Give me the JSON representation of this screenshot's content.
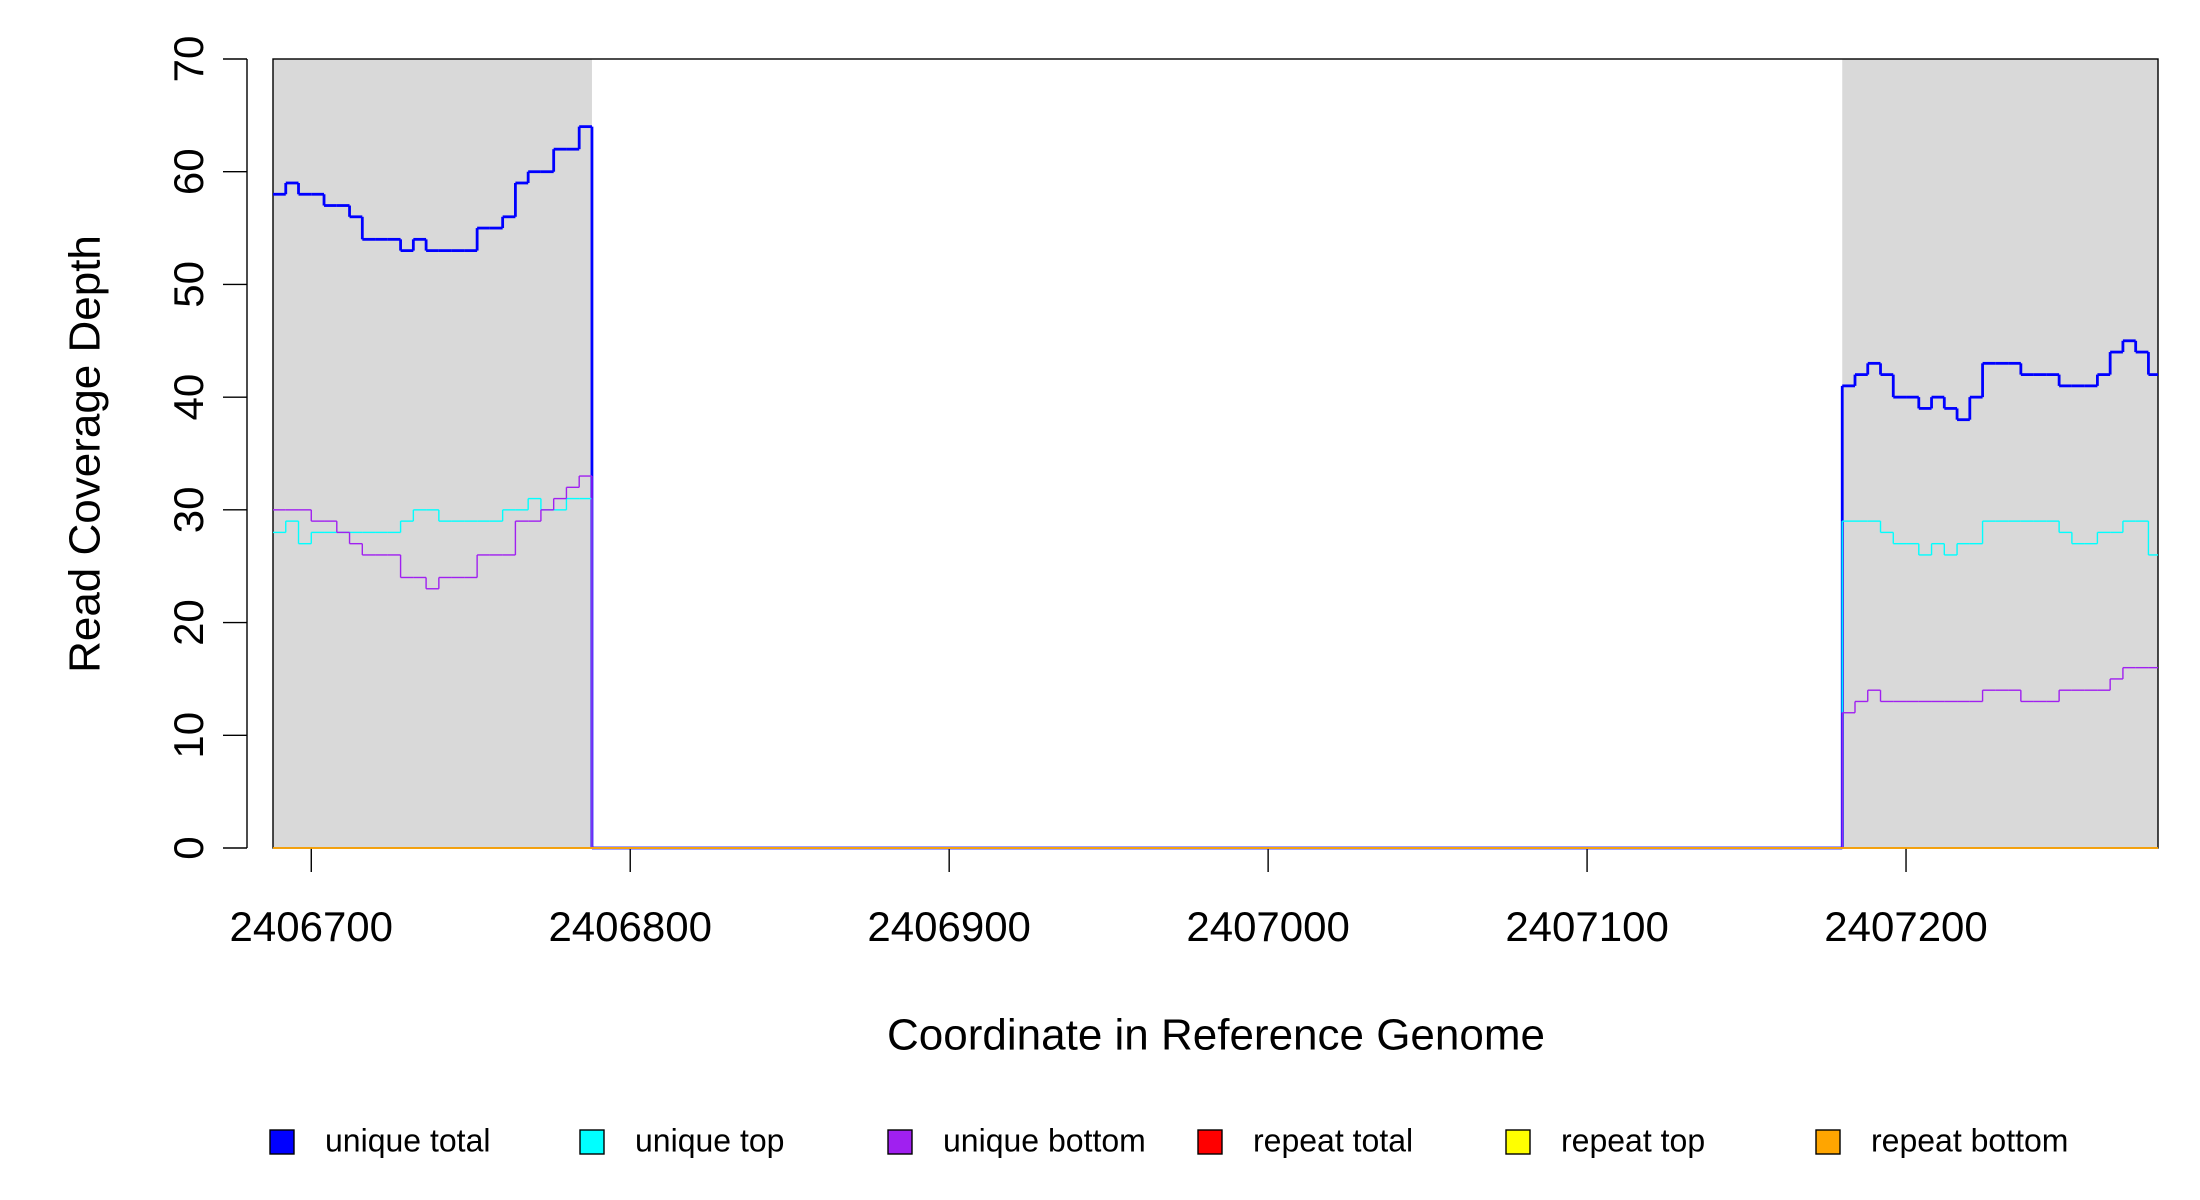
{
  "chart_data": {
    "type": "step-line",
    "xlabel": "Coordinate in Reference Genome",
    "ylabel": "Read Coverage Depth",
    "x": [
      2406688,
      2406692,
      2406696,
      2406700,
      2406704,
      2406708,
      2406712,
      2406716,
      2406720,
      2406724,
      2406728,
      2406732,
      2406736,
      2406740,
      2406744,
      2406748,
      2406752,
      2406756,
      2406760,
      2406764,
      2406768,
      2406772,
      2406776,
      2406780,
      2406784,
      2406788,
      2407180,
      2407184,
      2407188,
      2407192,
      2407196,
      2407200,
      2407204,
      2407208,
      2407212,
      2407216,
      2407220,
      2407224,
      2407228,
      2407232,
      2407236,
      2407240,
      2407244,
      2407248,
      2407252,
      2407256,
      2407260,
      2407264,
      2407268,
      2407272,
      2407276
    ],
    "series": [
      {
        "name": "unique total",
        "color": "#0000ff",
        "values": [
          58,
          59,
          58,
          58,
          57,
          57,
          56,
          54,
          54,
          54,
          53,
          54,
          53,
          53,
          53,
          53,
          55,
          55,
          56,
          59,
          60,
          60,
          62,
          62,
          64,
          0,
          41,
          42,
          43,
          42,
          40,
          40,
          39,
          40,
          39,
          38,
          40,
          43,
          43,
          43,
          42,
          42,
          42,
          41,
          41,
          41,
          42,
          44,
          45,
          44,
          42
        ]
      },
      {
        "name": "unique top",
        "color": "#00ffff",
        "values": [
          28,
          29,
          27,
          28,
          28,
          28,
          28,
          28,
          28,
          28,
          29,
          30,
          30,
          29,
          29,
          29,
          29,
          29,
          30,
          30,
          31,
          30,
          30,
          31,
          31,
          0,
          29,
          29,
          29,
          28,
          27,
          27,
          26,
          27,
          26,
          27,
          27,
          29,
          29,
          29,
          29,
          29,
          29,
          28,
          27,
          27,
          28,
          28,
          29,
          29,
          26
        ]
      },
      {
        "name": "unique bottom",
        "color": "#a020f0",
        "values": [
          30,
          30,
          30,
          29,
          29,
          28,
          27,
          26,
          26,
          26,
          24,
          24,
          23,
          24,
          24,
          24,
          26,
          26,
          26,
          29,
          29,
          30,
          31,
          32,
          33,
          0,
          12,
          13,
          14,
          13,
          13,
          13,
          13,
          13,
          13,
          13,
          13,
          14,
          14,
          14,
          13,
          13,
          13,
          14,
          14,
          14,
          14,
          15,
          16,
          16,
          16
        ]
      },
      {
        "name": "repeat total",
        "color": "#ff0000",
        "values": [
          0,
          0,
          0,
          0,
          0,
          0,
          0,
          0,
          0,
          0,
          0,
          0,
          0,
          0,
          0,
          0,
          0,
          0,
          0,
          0,
          0,
          0,
          0,
          0,
          0,
          0,
          0,
          0,
          0,
          0,
          0,
          0,
          0,
          0,
          0,
          0,
          0,
          0,
          0,
          0,
          0,
          0,
          0,
          0,
          0,
          0,
          0,
          0,
          0,
          0,
          0
        ]
      },
      {
        "name": "repeat top",
        "color": "#ffff00",
        "values": [
          0,
          0,
          0,
          0,
          0,
          0,
          0,
          0,
          0,
          0,
          0,
          0,
          0,
          0,
          0,
          0,
          0,
          0,
          0,
          0,
          0,
          0,
          0,
          0,
          0,
          0,
          0,
          0,
          0,
          0,
          0,
          0,
          0,
          0,
          0,
          0,
          0,
          0,
          0,
          0,
          0,
          0,
          0,
          0,
          0,
          0,
          0,
          0,
          0,
          0,
          0
        ]
      },
      {
        "name": "repeat bottom",
        "color": "#ffa500",
        "values": [
          0,
          0,
          0,
          0,
          0,
          0,
          0,
          0,
          0,
          0,
          0,
          0,
          0,
          0,
          0,
          0,
          0,
          0,
          0,
          0,
          0,
          0,
          0,
          0,
          0,
          0,
          0,
          0,
          0,
          0,
          0,
          0,
          0,
          0,
          0,
          0,
          0,
          0,
          0,
          0,
          0,
          0,
          0,
          0,
          0,
          0,
          0,
          0,
          0,
          0,
          0
        ]
      }
    ],
    "shaded_regions": [
      [
        2406688,
        2406788
      ],
      [
        2407180,
        2407279
      ]
    ],
    "shade_color": "#d9d9d9",
    "xlim": [
      2406688,
      2407279
    ],
    "xticks": [
      2406700,
      2406800,
      2406900,
      2407000,
      2407100,
      2407200
    ],
    "ylim": [
      0,
      70
    ],
    "yticks": [
      0,
      10,
      20,
      30,
      40,
      50,
      60,
      70
    ]
  }
}
